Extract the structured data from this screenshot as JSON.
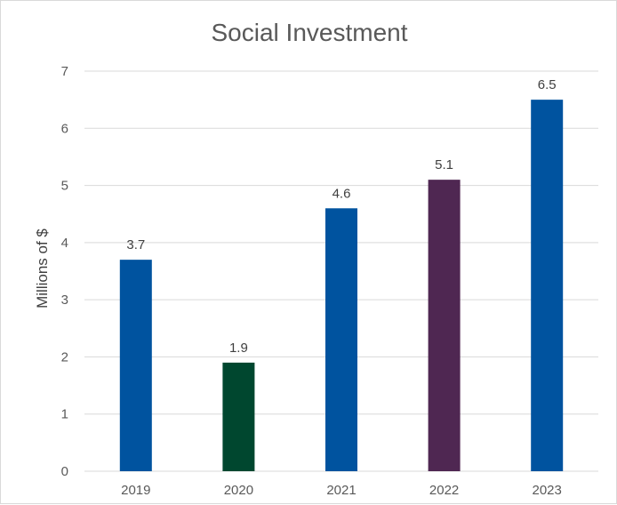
{
  "chart_data": {
    "type": "bar",
    "title": "Social Investment",
    "ylabel": "Millions of $",
    "xlabel": "",
    "categories": [
      "2019",
      "2020",
      "2021",
      "2022",
      "2023"
    ],
    "values": [
      3.7,
      1.9,
      4.6,
      5.1,
      6.5
    ],
    "data_labels": [
      "3.7",
      "1.9",
      "4.6",
      "5.1",
      "6.5"
    ],
    "bar_colors": [
      "#00539f",
      "#00472f",
      "#00539f",
      "#4f2752",
      "#00539f"
    ],
    "ylim": [
      0,
      7
    ],
    "yticks": [
      0,
      1,
      2,
      3,
      4,
      5,
      6,
      7
    ],
    "grid": true,
    "legend": "none"
  }
}
